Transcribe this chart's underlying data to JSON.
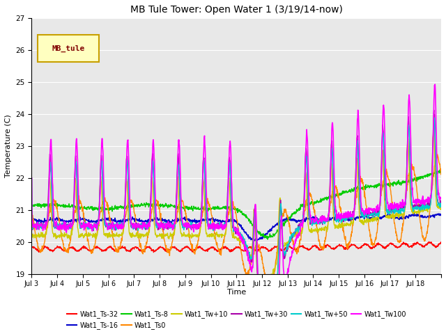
{
  "title": "MB Tule Tower: Open Water 1 (3/19/14-now)",
  "xlabel": "Time",
  "ylabel": "Temperature (C)",
  "ylim": [
    19.0,
    27.0
  ],
  "yticks": [
    19.0,
    20.0,
    21.0,
    22.0,
    23.0,
    24.0,
    25.0,
    26.0,
    27.0
  ],
  "xtick_labels": [
    "Jul 3",
    "Jul 4",
    "Jul 5",
    "Jul 6",
    "Jul 7",
    "Jul 8",
    "Jul 9",
    "Jul 10",
    "Jul 11",
    "Jul 12",
    "Jul 13",
    "Jul 14",
    "Jul 15",
    "Jul 16",
    "Jul 17",
    "Jul 18"
  ],
  "legend_box_label": "MB_tule",
  "legend_box_color": "#ffffc0",
  "legend_box_border": "#c8a000",
  "legend_box_text_color": "#800000",
  "background_color": "#e8e8e8",
  "series": [
    {
      "label": "Wat1_Ts-32",
      "color": "#ff0000",
      "linewidth": 1.0
    },
    {
      "label": "Wat1_Ts-16",
      "color": "#0000cc",
      "linewidth": 1.0
    },
    {
      "label": "Wat1_Ts-8",
      "color": "#00cc00",
      "linewidth": 1.0
    },
    {
      "label": "Wat1_Ts0",
      "color": "#ff8800",
      "linewidth": 1.0
    },
    {
      "label": "Wat1_Tw+10",
      "color": "#cccc00",
      "linewidth": 1.0
    },
    {
      "label": "Wat1_Tw+30",
      "color": "#aa00aa",
      "linewidth": 1.0
    },
    {
      "label": "Wat1_Tw+50",
      "color": "#00cccc",
      "linewidth": 1.0
    },
    {
      "label": "Wat1_Tw100",
      "color": "#ff00ff",
      "linewidth": 1.2
    }
  ],
  "n_days": 16,
  "pts_per_day": 96
}
